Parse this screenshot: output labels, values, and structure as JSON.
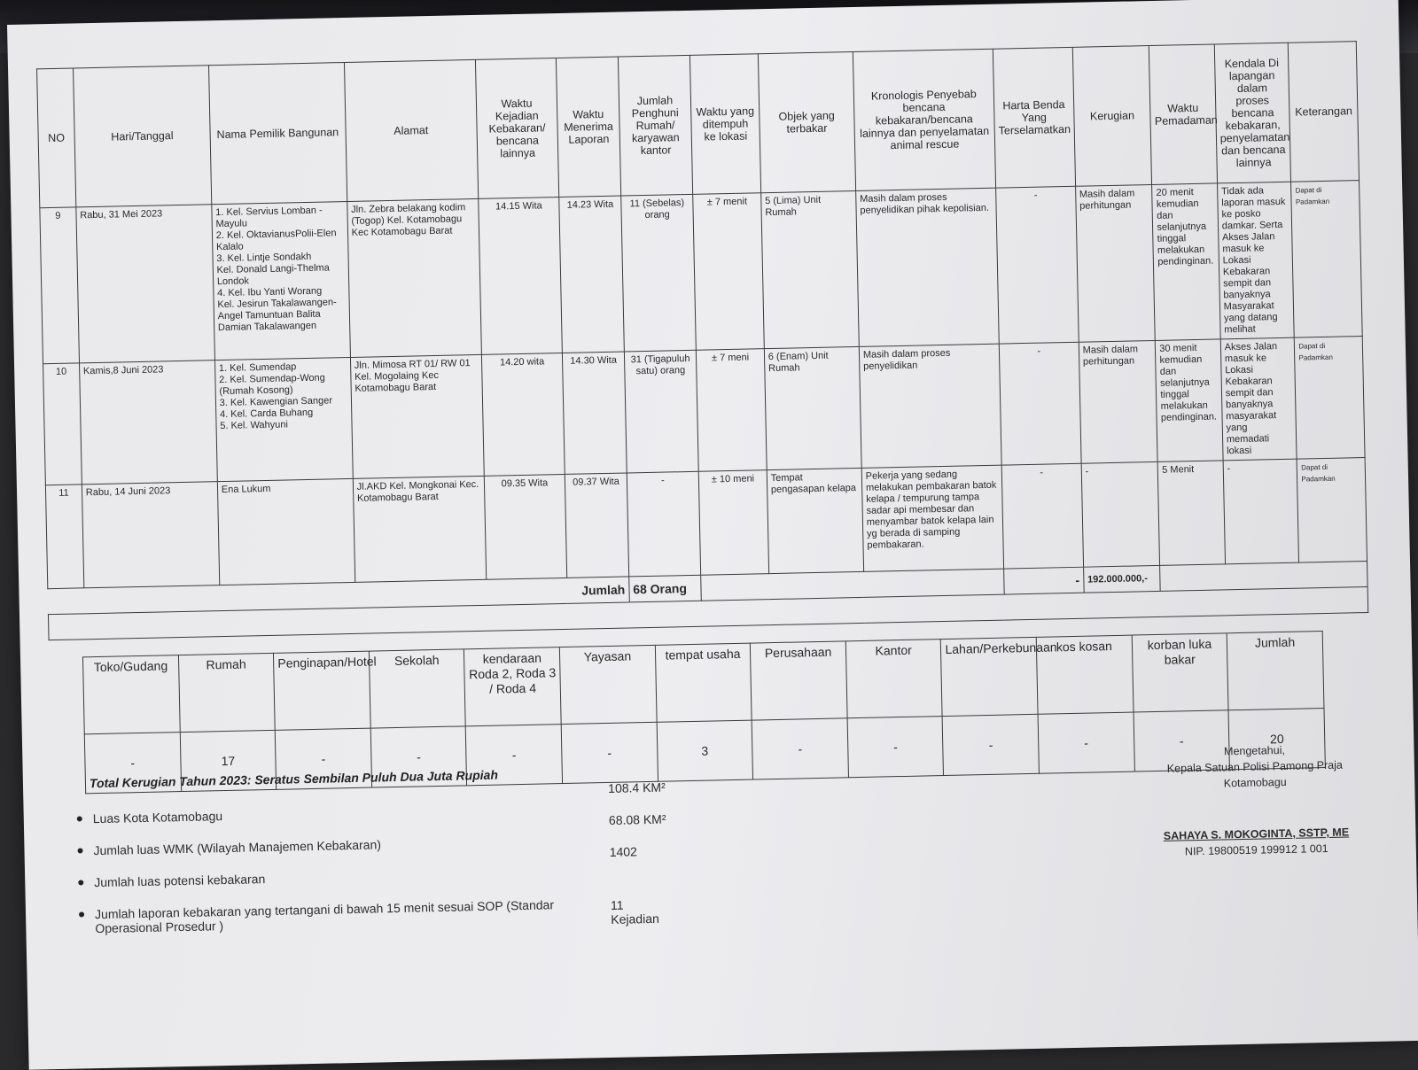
{
  "table": {
    "headers": [
      "NO",
      "Hari/Tanggal",
      "Nama Pemilik Bangunan",
      "Alamat",
      "Waktu Kejadian Kebakaran/ bencana lainnya",
      "Waktu Menerima Laporan",
      "Jumlah Penghuni Rumah/ karyawan kantor",
      "Waktu yang ditempuh ke lokasi",
      "Objek yang terbakar",
      "Kronologis Penyebab bencana kebakaran/bencana lainnya dan penyelamatan animal rescue",
      "Harta Benda Yang Terselamatkan",
      "Kerugian",
      "Waktu Pemadaman",
      "Kendala Di lapangan dalam proses bencana kebakaran, penyelamatan dan bencana lainnya",
      "Keterangan"
    ],
    "rows": [
      [
        "9",
        "Rabu, 31 Mei 2023",
        "1. Kel. Servius Lomban - Mayulu\n2. Kel. OktavianusPolii-Elen Kalalo\n3. Kel. Lintje Sondakh\n   Kel. Donald Langi-Thelma Londok\n4. Kel. Ibu Yanti Worang\n   Kel. Jesirun Takalawangen-Angel Tamuntuan Balita Damian Takalawangen",
        "Jln. Zebra belakang kodim (Togop) Kel. Kotamobagu Kec Kotamobagu Barat",
        "14.15 Wita",
        "14.23 Wita",
        "11 (Sebelas) orang",
        "± 7 menit",
        "5 (Lima) Unit Rumah",
        "Masih dalam proses penyelidikan pihak kepolisian.",
        "-",
        "Masih dalam perhitungan",
        "20 menit kemudian dan selanjutnya tinggal melakukan pendinginan.",
        "Tidak ada laporan masuk ke posko damkar. Serta Akses Jalan masuk ke Lokasi Kebakaran sempit dan banyaknya Masyarakat yang datang melihat",
        "Dapat di Padamkan"
      ],
      [
        "10",
        "Kamis,8 Juni 2023",
        "1. Kel. Sumendap\n2. Kel. Sumendap-Wong (Rumah Kosong)\n3. Kel. Kawengian Sanger\n4. Kel. Carda Buhang\n5. Kel. Wahyuni",
        "Jln. Mimosa RT 01/ RW 01 Kel. Mogolaing Kec Kotamobagu Barat",
        "14.20 wita",
        "14.30 Wita",
        "31 (Tigapuluh satu) orang",
        "± 7 meni",
        "6 (Enam) Unit Rumah",
        "Masih dalam proses penyelidikan",
        "-",
        "Masih dalam perhitungan",
        "30 menit kemudian dan selanjutnya tinggal melakukan pendinginan.",
        "Akses Jalan masuk ke Lokasi Kebakaran sempit dan banyaknya masyarakat yang memadati lokasi",
        "Dapat di Padamkan"
      ],
      [
        "11",
        "Rabu, 14 Juni 2023",
        "Ena Lukum",
        "Jl.AKD Kel. Mongkonai Kec. Kotamobagu Barat",
        "09.35 Wita",
        "09.37 Wita",
        "-",
        "± 10 meni",
        "Tempat pengasapan kelapa",
        "Pekerja yang sedang melakukan pembakaran batok kelapa / tempurung tampa sadar api membesar dan menyambar batok kelapa lain yg berada di samping pembakaran.",
        "-",
        "-",
        "5 Menit",
        "-",
        "Dapat di Padamkan"
      ]
    ],
    "summary": {
      "label": "Jumlah",
      "people": "68 Orang",
      "dash": "-",
      "loss": "192.000.000,-"
    }
  },
  "categories": {
    "headers": [
      "Toko/Gudang",
      "Rumah",
      "Penginapan/Hotel",
      "Sekolah",
      "kendaraan Roda 2, Roda 3 / Roda 4",
      "Yayasan",
      "tempat usaha",
      "Perusahaan",
      "Kantor",
      "Lahan/Perkebunaan",
      "kos kosan",
      "korban luka bakar",
      "Jumlah"
    ],
    "values": [
      "-",
      "17",
      "-",
      "-",
      "-",
      "-",
      "3",
      "-",
      "-",
      "-",
      "-",
      "-",
      "20"
    ]
  },
  "total_loss": "Total Kerugian Tahun 2023: Seratus Sembilan Puluh Dua Juta  Rupiah",
  "stats": [
    {
      "label": "Luas Kota Kotamobagu",
      "value": "108.4 KM²"
    },
    {
      "label": "Jumlah luas WMK (Wilayah Manajemen Kebakaran)",
      "value": "68.08 KM²"
    },
    {
      "label": "Jumlah luas potensi kebakaran",
      "value": "1402"
    },
    {
      "label": "Jumlah laporan kebakaran yang tertangani di bawah 15 menit sesuai SOP (Standar Operasional Prosedur )",
      "value": "11 Kejadian"
    }
  ],
  "signature": {
    "line1": "Mengetahui,",
    "line2": "Kepala Satuan Polisi Pamong Praja",
    "line3": "Kotamobagu",
    "name": "SAHAYA S. MOKOGINTA, SSTP, ME",
    "nip": "NIP. 19800519 199912 1 001"
  }
}
